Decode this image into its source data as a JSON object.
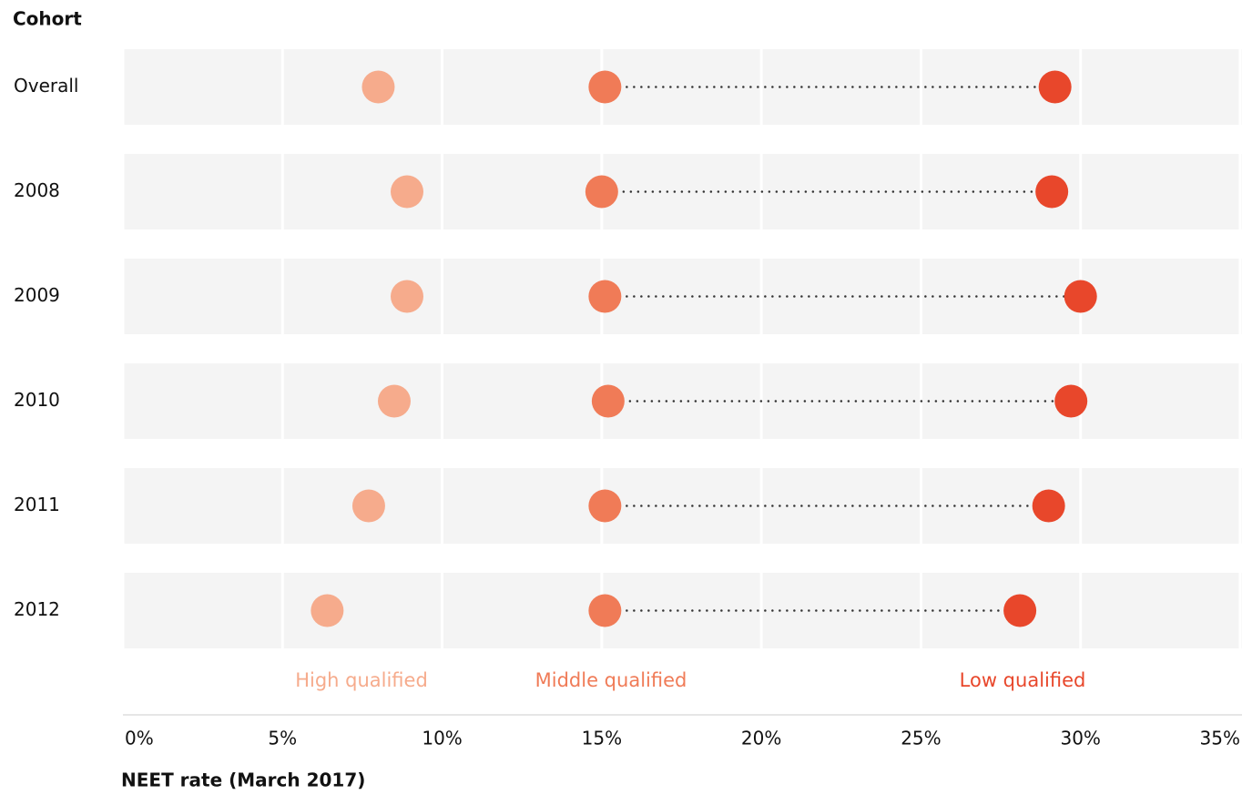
{
  "chart_data": {
    "type": "dot",
    "y_axis_label": "Cohort",
    "x_axis_label": "NEET rate (March 2017)",
    "categories": [
      "Overall",
      "2008",
      "2009",
      "2010",
      "2011",
      "2012"
    ],
    "series": [
      {
        "name": "High qualified",
        "color": "#f6ab8c",
        "values": [
          8.0,
          8.9,
          8.9,
          8.5,
          7.7,
          6.4
        ]
      },
      {
        "name": "Middle qualified",
        "color": "#f07b57",
        "values": [
          15.1,
          15.0,
          15.1,
          15.2,
          15.1,
          15.1
        ]
      },
      {
        "name": "Low qualified",
        "color": "#e8472b",
        "values": [
          29.2,
          29.1,
          30.0,
          29.7,
          29.0,
          28.1
        ]
      }
    ],
    "xlim": [
      0,
      35
    ],
    "xticks": [
      {
        "value": 0,
        "label": "0%"
      },
      {
        "value": 5,
        "label": "5%"
      },
      {
        "value": 10,
        "label": "10%"
      },
      {
        "value": 15,
        "label": "15%"
      },
      {
        "value": 20,
        "label": "20%"
      },
      {
        "value": 25,
        "label": "25%"
      },
      {
        "value": 30,
        "label": "30%"
      },
      {
        "value": 35,
        "label": "35%"
      }
    ],
    "grid": true
  }
}
